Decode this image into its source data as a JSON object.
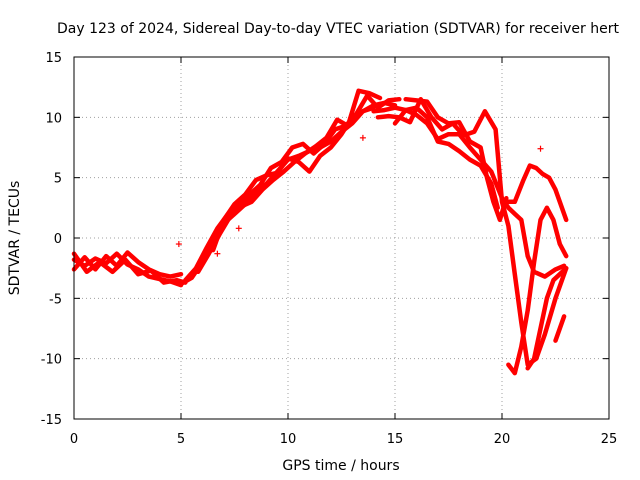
{
  "chart_data": {
    "type": "scatter",
    "title": "Day 123 of 2024, Sidereal Day-to-day VTEC variation (SDTVAR) for receiver hert",
    "xlabel": "GPS time / hours",
    "ylabel": "SDTVAR / TECUs",
    "xlim": [
      0,
      25
    ],
    "ylim": [
      -15,
      15
    ],
    "xticks": [
      0,
      5,
      10,
      15,
      20,
      25
    ],
    "yticks": [
      -15,
      -10,
      -5,
      0,
      5,
      10,
      15
    ],
    "grid": true,
    "color": "#ff0000",
    "marker": "plus",
    "series": [
      {
        "x": [
          0.0,
          0.5,
          1.0,
          1.5,
          2.0,
          2.5,
          3.0,
          3.5,
          4.0,
          4.5,
          5.0
        ],
        "y": [
          -1.8,
          -2.3,
          -1.7,
          -2.1,
          -1.3,
          -2.2,
          -2.6,
          -3.2,
          -3.4,
          -3.6,
          -3.9
        ]
      },
      {
        "x": [
          0.0,
          0.5,
          1.0,
          1.5,
          2.0,
          2.5,
          3.0,
          3.5,
          4.0,
          4.5,
          5.0
        ],
        "y": [
          -2.6,
          -1.6,
          -2.6,
          -1.5,
          -2.3,
          -1.2,
          -2.0,
          -2.6,
          -3.0,
          -3.2,
          -3.0
        ]
      },
      {
        "x": [
          0.0,
          0.6,
          1.2,
          1.8,
          2.4,
          3.0,
          3.6,
          4.2,
          4.8,
          5.2
        ],
        "y": [
          -1.3,
          -2.8,
          -2.0,
          -2.8,
          -1.8,
          -3.0,
          -2.7,
          -3.7,
          -3.5,
          -3.7
        ]
      },
      {
        "x": [
          5.0,
          5.5,
          6.0,
          6.5,
          7.0,
          7.5,
          8.0,
          8.5,
          9.0,
          9.5,
          10.0,
          10.5,
          11.0,
          11.5,
          12.0,
          12.5,
          13.0,
          13.5,
          14.0,
          14.5,
          15.0
        ],
        "y": [
          -3.8,
          -3.3,
          -2.0,
          -0.5,
          1.2,
          2.0,
          2.8,
          3.8,
          4.5,
          5.5,
          6.5,
          6.8,
          7.2,
          7.5,
          8.0,
          8.8,
          9.5,
          10.5,
          11.0,
          11.2,
          11.0
        ]
      },
      {
        "x": [
          5.2,
          5.7,
          6.2,
          6.7,
          7.2,
          7.7,
          8.2,
          8.7,
          9.2,
          9.7,
          10.2,
          10.7,
          11.2,
          11.7,
          12.2,
          12.7,
          13.2,
          13.7,
          14.2,
          14.7,
          15.2
        ],
        "y": [
          -3.5,
          -2.5,
          -0.8,
          0.8,
          2.0,
          2.8,
          3.6,
          4.4,
          5.8,
          6.3,
          7.5,
          7.8,
          7.0,
          7.8,
          9.0,
          9.3,
          10.3,
          11.8,
          10.8,
          11.4,
          11.5
        ]
      },
      {
        "x": [
          5.8,
          6.3,
          6.8,
          7.3,
          7.8,
          8.3,
          8.8,
          9.3,
          9.8,
          10.3,
          10.8,
          11.3,
          11.8,
          12.3,
          12.8,
          13.3,
          13.8,
          14.3
        ],
        "y": [
          -2.8,
          -1.3,
          0.3,
          1.8,
          2.6,
          3.0,
          4.0,
          4.8,
          5.5,
          6.3,
          7.0,
          7.6,
          8.3,
          9.8,
          9.3,
          12.2,
          12.0,
          11.6
        ]
      },
      {
        "x": [
          6.5,
          7.0,
          7.5,
          8.0,
          8.5,
          9.0,
          9.5,
          10.0,
          10.5,
          11.0,
          11.5,
          12.0,
          12.5,
          13.0,
          13.5,
          14.0
        ],
        "y": [
          -1.0,
          1.5,
          2.8,
          3.6,
          4.8,
          5.2,
          5.4,
          6.6,
          6.3,
          5.5,
          6.8,
          7.5,
          8.6,
          10.0,
          10.5,
          10.8
        ]
      },
      {
        "x": [
          14.0,
          14.5,
          15.0,
          15.5,
          16.0,
          16.5,
          17.0,
          17.5,
          18.0,
          18.5,
          19.0,
          19.5,
          20.0,
          20.3,
          20.6,
          20.9,
          21.2,
          21.5,
          22.0,
          22.5,
          22.9
        ],
        "y": [
          10.5,
          10.6,
          10.8,
          10.6,
          10.2,
          9.5,
          8.2,
          8.6,
          8.6,
          7.5,
          6.5,
          5.5,
          3.3,
          2.5,
          2.0,
          1.5,
          -1.5,
          -2.8,
          -3.2,
          -2.6,
          -2.3
        ]
      },
      {
        "x": [
          14.2,
          14.7,
          15.2,
          15.7,
          16.2,
          16.7,
          17.2,
          17.7,
          18.2,
          18.7,
          19.2,
          19.7,
          20.0,
          20.3,
          20.6,
          20.9,
          21.2,
          21.6,
          22.0,
          22.5,
          23.0
        ],
        "y": [
          10.0,
          10.1,
          10.0,
          9.6,
          11.5,
          10.0,
          9.0,
          9.5,
          8.5,
          8.8,
          10.5,
          9.0,
          3.0,
          1.0,
          -3.0,
          -7.0,
          -10.5,
          -10.0,
          -8.0,
          -5.0,
          -2.5
        ]
      },
      {
        "x": [
          15.0,
          15.5,
          16.0,
          16.5,
          17.0,
          17.5,
          18.0,
          18.5,
          19.0,
          19.5,
          19.8
        ],
        "y": [
          9.5,
          10.6,
          10.8,
          10.0,
          8.0,
          7.8,
          7.2,
          6.5,
          6.0,
          4.5,
          2.5
        ]
      },
      {
        "x": [
          15.5,
          16.0,
          16.5,
          17.0,
          17.5,
          18.0,
          18.5,
          19.0,
          19.3,
          19.6,
          19.9,
          20.2
        ],
        "y": [
          11.5,
          11.4,
          11.3,
          10.0,
          9.5,
          9.6,
          8.0,
          7.5,
          5.0,
          3.0,
          1.5,
          3.3
        ]
      },
      {
        "x": [
          20.2,
          20.6,
          21.0,
          21.3,
          21.6,
          21.9,
          22.2,
          22.5,
          22.8,
          23.0
        ],
        "y": [
          3.0,
          3.0,
          4.8,
          6.0,
          5.8,
          5.3,
          5.0,
          4.0,
          2.5,
          1.5
        ]
      },
      {
        "x": [
          20.3,
          20.6,
          20.9,
          21.2,
          21.5,
          21.8,
          22.1,
          22.4,
          22.7,
          23.0
        ],
        "y": [
          -10.5,
          -11.2,
          -9.0,
          -6.0,
          -2.0,
          1.5,
          2.5,
          1.5,
          -0.5,
          -1.5
        ]
      },
      {
        "x": [
          21.2,
          21.5,
          21.8,
          22.1,
          22.4,
          22.7,
          23.0
        ],
        "y": [
          -10.8,
          -10.0,
          -7.5,
          -5.0,
          -3.5,
          -3.0,
          -2.5
        ]
      },
      {
        "x": [
          22.5,
          22.7,
          22.9
        ],
        "y": [
          -8.5,
          -7.5,
          -6.5
        ]
      }
    ],
    "outliers": [
      {
        "x": 4.9,
        "y": -0.5
      },
      {
        "x": 7.7,
        "y": 0.8
      },
      {
        "x": 13.5,
        "y": 8.3
      },
      {
        "x": 6.7,
        "y": -1.3
      },
      {
        "x": 21.8,
        "y": 7.4
      }
    ]
  }
}
